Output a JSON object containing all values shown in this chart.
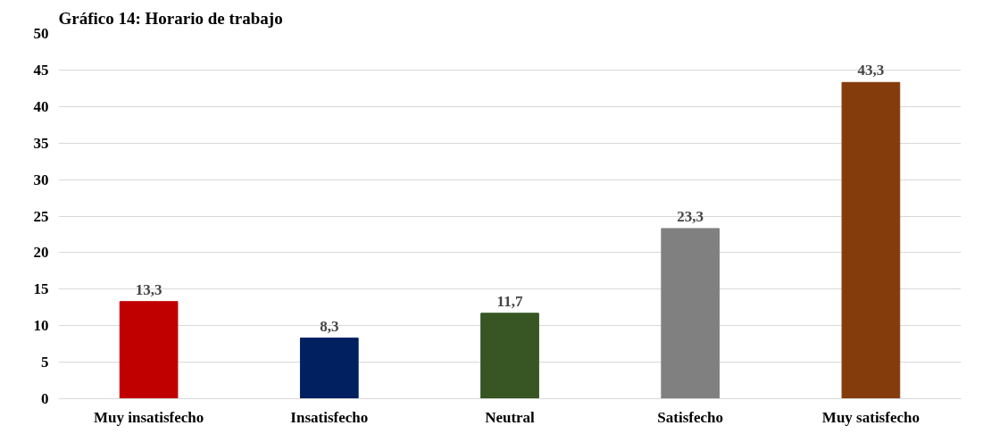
{
  "chart_data": {
    "type": "bar",
    "title": "Gráfico 14: Horario de trabajo",
    "categories": [
      "Muy insatisfecho",
      "Insatisfecho",
      "Neutral",
      "Satisfecho",
      "Muy satisfecho"
    ],
    "values": [
      13.3,
      8.3,
      11.7,
      23.3,
      43.3
    ],
    "colors": [
      "#c00000",
      "#002060",
      "#375623",
      "#808080",
      "#843c0c"
    ],
    "value_labels": [
      "13,3",
      "8,3",
      "11,7",
      "23,3",
      "43,3"
    ],
    "ylim": [
      0,
      50
    ],
    "yticks": [
      0,
      5,
      10,
      15,
      20,
      25,
      30,
      35,
      40,
      45,
      50
    ],
    "grid": "y"
  }
}
